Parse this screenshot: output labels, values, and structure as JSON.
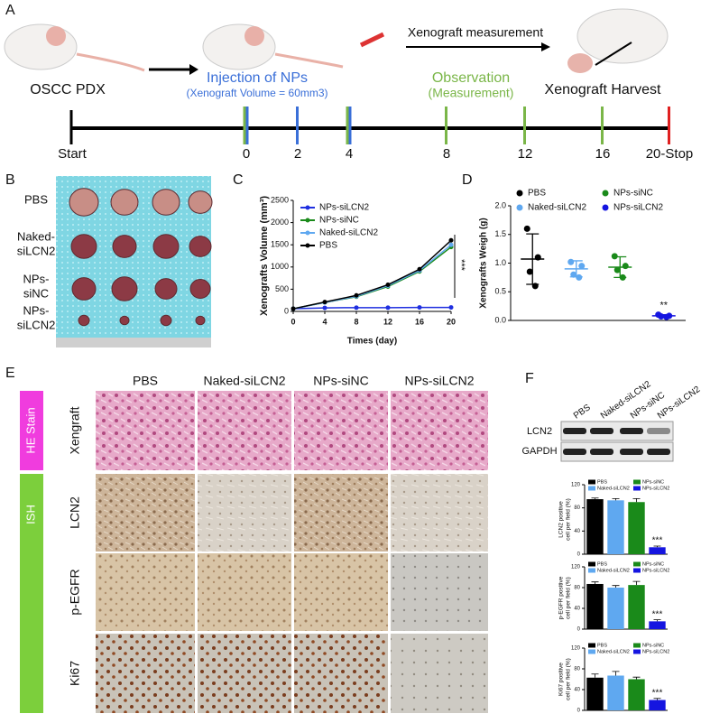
{
  "panel_labels": [
    "A",
    "B",
    "C",
    "D",
    "E",
    "F"
  ],
  "panel_a": {
    "start_label": "OSCC PDX",
    "injection": "Injection of NPs",
    "injection_note": "(Xenograft Volume = 60mm3)",
    "observation": "Observation",
    "observation_note": "(Measurement)",
    "measurement": "Xenograft measurement",
    "harvest": "Xenograft Harvest",
    "timeline": [
      "Start",
      "0",
      "2",
      "4",
      "8",
      "12",
      "16",
      "20-Stop"
    ]
  },
  "panel_b": {
    "rows": [
      [
        "PBS"
      ],
      [
        "Naked-",
        "siLCN2"
      ],
      [
        "NPs-",
        "siNC"
      ],
      [
        "NPs-",
        "siLCN2"
      ]
    ]
  },
  "panel_e": {
    "columns": [
      "PBS",
      "Naked-siLCN2",
      "NPs-siNC",
      "NPs-siLCN2"
    ],
    "stain_groups": [
      "HE Stain",
      "ISH"
    ],
    "rows": [
      "Xengraft",
      "LCN2",
      "p-EGFR",
      "Ki67"
    ]
  },
  "panel_f": {
    "lanes": [
      "PBS",
      "Naked-siLCN2",
      "NPs-siNC",
      "NPs-siLCN2"
    ],
    "bands": [
      "LCN2",
      "GAPDH"
    ]
  },
  "chart_data": [
    {
      "type": "line",
      "y_label": "Xenografts Volume (mm³)",
      "x_label": "Times (day)",
      "annotation": "***",
      "x": [
        0,
        4,
        8,
        12,
        16,
        20
      ],
      "xlim": [
        0,
        20
      ],
      "xticks": [
        0,
        4,
        8,
        12,
        16,
        20
      ],
      "ylim": [
        0,
        2500
      ],
      "yticks": [
        0,
        500,
        1000,
        1500,
        2000,
        2500
      ],
      "series": [
        {
          "name": "NPs-siLCN2",
          "color": "#1f2fe0",
          "values": [
            60,
            80,
            85,
            85,
            90,
            90
          ]
        },
        {
          "name": "NPs-siNC",
          "color": "#1a8a1a",
          "values": [
            60,
            200,
            330,
            560,
            900,
            1450
          ]
        },
        {
          "name": "Naked-siLCN2",
          "color": "#5fa8f0",
          "values": [
            60,
            200,
            340,
            580,
            920,
            1500
          ]
        },
        {
          "name": "PBS",
          "color": "#000000",
          "values": [
            60,
            210,
            360,
            600,
            950,
            1600
          ]
        }
      ]
    },
    {
      "type": "scatter",
      "y_label": "Xenografts Weigh (g)",
      "annotation": "**",
      "ylim": [
        0,
        2
      ],
      "yticks": [
        {
          "value": 0,
          "label": "0.0"
        },
        {
          "value": 0.5,
          "label": "0.5"
        },
        {
          "value": 1,
          "label": "1.0"
        },
        {
          "value": 1.5,
          "label": "1.5"
        },
        {
          "value": 2,
          "label": "2.0"
        }
      ],
      "series": [
        {
          "name": "PBS",
          "color": "#000000",
          "values": [
            1.6,
            1.1,
            0.85,
            0.6
          ],
          "mean": 1.07,
          "sd": 0.44
        },
        {
          "name": "Naked-siLCN2",
          "color": "#5fa8f0",
          "values": [
            1.02,
            0.95,
            0.8,
            0.75
          ],
          "mean": 0.9,
          "sd": 0.14
        },
        {
          "name": "NPs-siNC",
          "color": "#1a8a1a",
          "values": [
            1.12,
            0.95,
            0.88,
            0.75
          ],
          "mean": 0.93,
          "sd": 0.18
        },
        {
          "name": "NPs-siLCN2",
          "color": "#1515e0",
          "values": [
            0.1,
            0.08,
            0.07,
            0.06
          ],
          "mean": 0.08,
          "sd": 0.02
        }
      ]
    },
    {
      "type": "bar",
      "y_label": [
        "LCN2 positive",
        "cell per field (%)"
      ],
      "annotation": "***",
      "ylim": [
        0,
        120
      ],
      "yticks": [
        0,
        40,
        80,
        120
      ],
      "series": [
        {
          "name": "PBS",
          "color": "#000000",
          "values": [
            95
          ],
          "errors": [
            2
          ]
        },
        {
          "name": "Naked-siLCN2",
          "color": "#5fa8f0",
          "values": [
            93
          ],
          "errors": [
            3
          ]
        },
        {
          "name": "NPs-siNC",
          "color": "#1a8a1a",
          "values": [
            90
          ],
          "errors": [
            6
          ]
        },
        {
          "name": "NPs-siLCN2",
          "color": "#1515e0",
          "values": [
            12
          ],
          "errors": [
            2
          ]
        }
      ]
    },
    {
      "type": "bar",
      "y_label": [
        "p-EGFR positive",
        "cell per field (%)"
      ],
      "annotation": "***",
      "ylim": [
        0,
        120
      ],
      "yticks": [
        0,
        40,
        80,
        120
      ],
      "series": [
        {
          "name": "PBS",
          "color": "#000000",
          "values": [
            87
          ],
          "errors": [
            4
          ]
        },
        {
          "name": "Naked-siLCN2",
          "color": "#5fa8f0",
          "values": [
            80
          ],
          "errors": [
            4
          ]
        },
        {
          "name": "NPs-siNC",
          "color": "#1a8a1a",
          "values": [
            85
          ],
          "errors": [
            7
          ]
        },
        {
          "name": "NPs-siLCN2",
          "color": "#1515e0",
          "values": [
            15
          ],
          "errors": [
            3
          ]
        }
      ]
    },
    {
      "type": "bar",
      "y_label": [
        "Ki67 positive",
        "cell per field (%)"
      ],
      "annotation": "***",
      "ylim": [
        0,
        120
      ],
      "yticks": [
        0,
        40,
        80,
        120
      ],
      "series": [
        {
          "name": "PBS",
          "color": "#000000",
          "values": [
            63
          ],
          "errors": [
            7
          ]
        },
        {
          "name": "Naked-siLCN2",
          "color": "#5fa8f0",
          "values": [
            67
          ],
          "errors": [
            8
          ]
        },
        {
          "name": "NPs-siNC",
          "color": "#1a8a1a",
          "values": [
            60
          ],
          "errors": [
            4
          ]
        },
        {
          "name": "NPs-siLCN2",
          "color": "#1515e0",
          "values": [
            20
          ],
          "errors": [
            3
          ]
        }
      ]
    }
  ]
}
